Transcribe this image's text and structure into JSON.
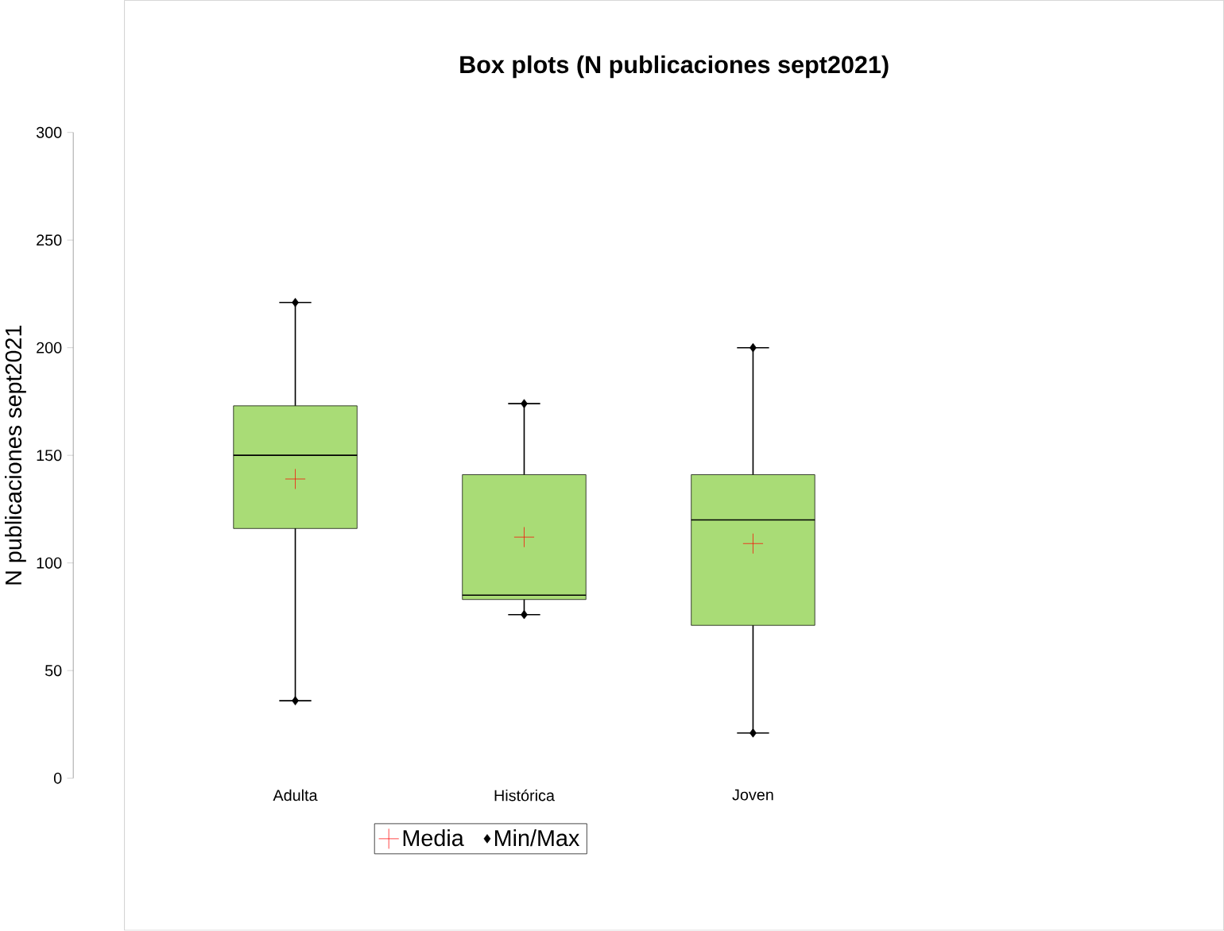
{
  "chart_data": {
    "type": "box",
    "title": "Box plots (N publicaciones sept2021)",
    "ylabel": "N publicaciones sept2021",
    "categories": [
      "Adulta",
      "Histórica",
      "Joven"
    ],
    "color": "#a9dc76",
    "boxes": [
      {
        "low": 36,
        "q1": 116,
        "median": 150,
        "q3": 173,
        "high": 221
      },
      {
        "low": 76,
        "q1": 83,
        "median": 85,
        "q3": 141,
        "high": 174
      },
      {
        "low": 21,
        "q1": 71,
        "median": 120,
        "q3": 141,
        "high": 200
      }
    ],
    "series": [
      {
        "name": "Media",
        "type": "scatter",
        "marker": "cross",
        "color": "#ff0000",
        "x": [
          "Adulta",
          "Histórica",
          "Joven"
        ],
        "values": [
          139,
          112,
          109
        ]
      },
      {
        "name": "Min/Max",
        "type": "scatter",
        "marker": "diamond",
        "color": "#000000",
        "x": [
          "Adulta",
          "Adulta",
          "Histórica",
          "Histórica",
          "Joven",
          "Joven"
        ],
        "values": [
          36,
          221,
          76,
          174,
          21,
          200
        ]
      }
    ],
    "ylim": [
      0,
      300
    ],
    "yticks": [
      0,
      50,
      100,
      150,
      200,
      250,
      300
    ],
    "grid": false,
    "legend": "bottom"
  }
}
